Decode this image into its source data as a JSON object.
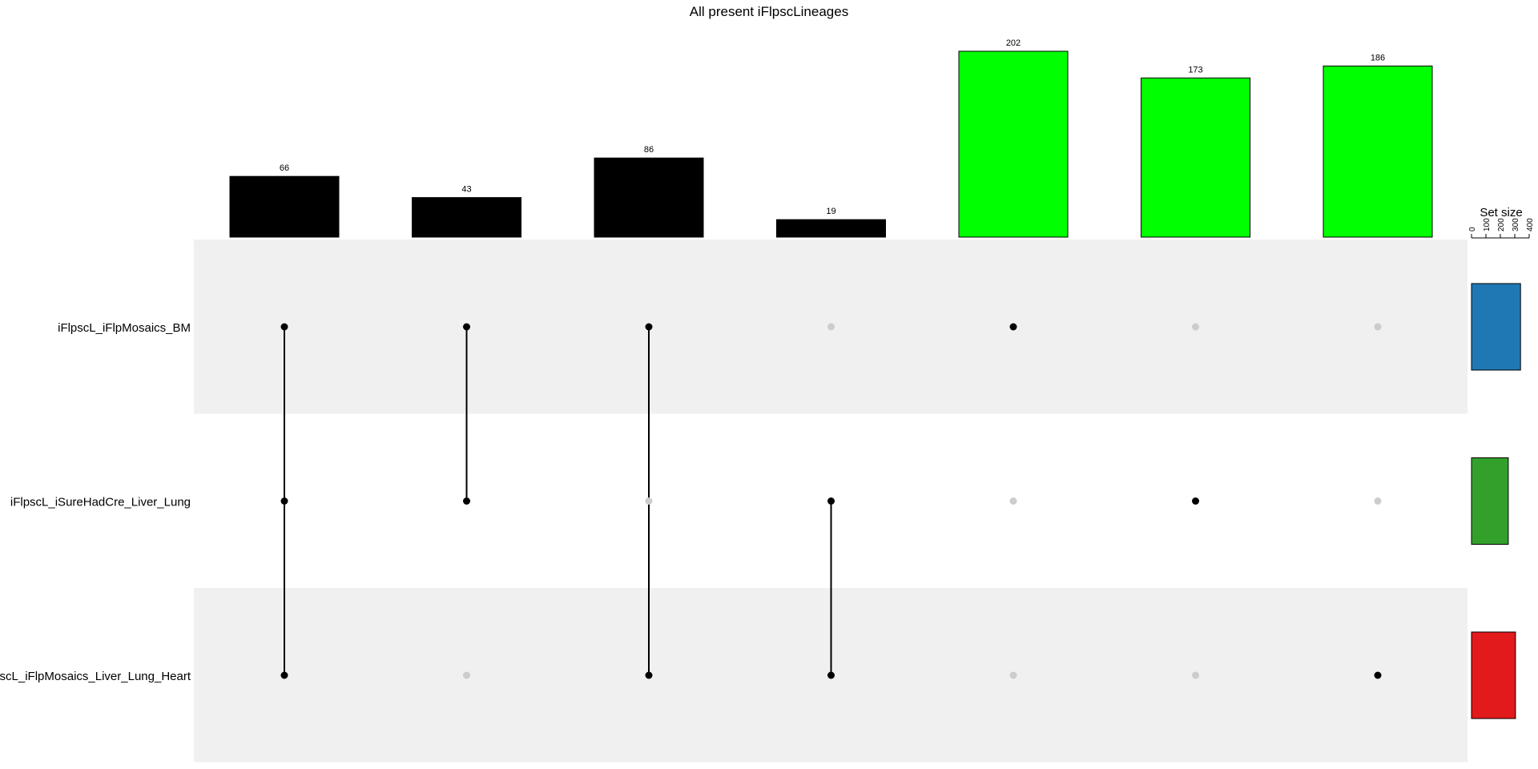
{
  "chart_data": {
    "type": "upset",
    "title": "All present iFlpscLineages",
    "sets": [
      {
        "name": "iFlpscL_iFlpMosaics_BM",
        "size": 340,
        "color": "#1f78b4"
      },
      {
        "name": "iFlpscL_iSureHadCre_Liver_Lung",
        "size": 255,
        "color": "#33a02c"
      },
      {
        "name": "iFlpscL_iFlpMosaics_Liver_Lung_Heart",
        "size": 305,
        "color": "#e31a1c"
      }
    ],
    "intersections": [
      {
        "value": 66,
        "members": [
          0,
          1,
          2
        ],
        "color": "#000000"
      },
      {
        "value": 43,
        "members": [
          0,
          1
        ],
        "color": "#000000"
      },
      {
        "value": 86,
        "members": [
          0,
          2
        ],
        "color": "#000000"
      },
      {
        "value": 19,
        "members": [
          1,
          2
        ],
        "color": "#000000"
      },
      {
        "value": 202,
        "members": [
          0
        ],
        "color": "#00ff00"
      },
      {
        "value": 173,
        "members": [
          1
        ],
        "color": "#00ff00"
      },
      {
        "value": 186,
        "members": [
          2
        ],
        "color": "#00ff00"
      }
    ],
    "set_size_axis": {
      "label": "Set size",
      "ticks": [
        "0",
        "100",
        "200",
        "300",
        "400"
      ],
      "max": 400
    },
    "bar_axis_max": 202,
    "colors": {
      "shade": "#f0f0f0",
      "dot_on": "#000000",
      "dot_off": "#cccccc",
      "bar_edge": "#000000"
    }
  }
}
